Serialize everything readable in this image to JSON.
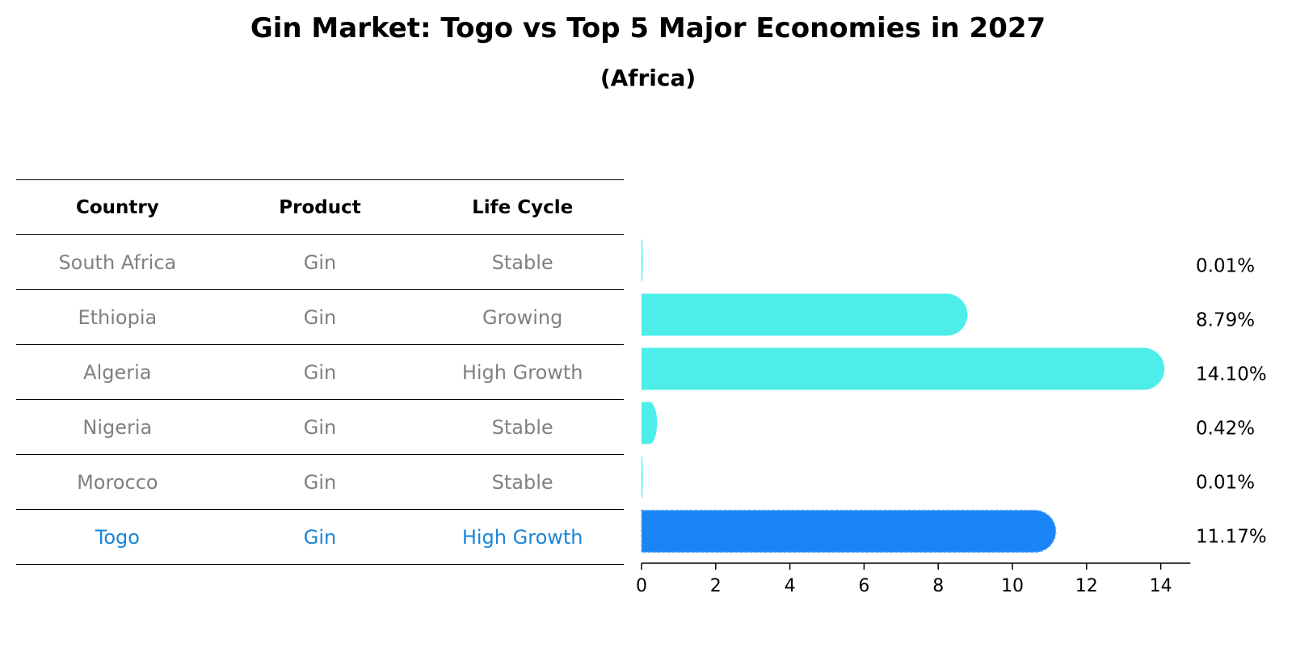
{
  "chart_data": {
    "type": "bar",
    "orientation": "horizontal",
    "title": "Gin Market: Togo vs Top 5 Major Economies in 2027",
    "subtitle": "(Africa)",
    "columns": [
      "Country",
      "Product",
      "Life Cycle"
    ],
    "rows": [
      {
        "country": "South Africa",
        "product": "Gin",
        "life_cycle": "Stable",
        "value": 0.01,
        "label": "0.01%"
      },
      {
        "country": "Ethiopia",
        "product": "Gin",
        "life_cycle": "Growing",
        "value": 8.79,
        "label": "8.79%"
      },
      {
        "country": "Algeria",
        "product": "Gin",
        "life_cycle": "High Growth",
        "value": 14.1,
        "label": "14.10%"
      },
      {
        "country": "Nigeria",
        "product": "Gin",
        "life_cycle": "Stable",
        "value": 0.42,
        "label": "0.42%"
      },
      {
        "country": "Morocco",
        "product": "Gin",
        "life_cycle": "Stable",
        "value": 0.01,
        "label": "0.01%"
      },
      {
        "country": "Togo",
        "product": "Gin",
        "life_cycle": "High Growth",
        "value": 11.17,
        "label": "11.17%",
        "highlight": true
      }
    ],
    "x_ticks": [
      0,
      2,
      4,
      6,
      8,
      10,
      12,
      14
    ],
    "xlim": [
      0,
      14.8
    ],
    "colors": {
      "bar": "#4deeea",
      "highlight": "#1a85f7",
      "highlight_text": "#1a85d6"
    },
    "grid": false
  }
}
